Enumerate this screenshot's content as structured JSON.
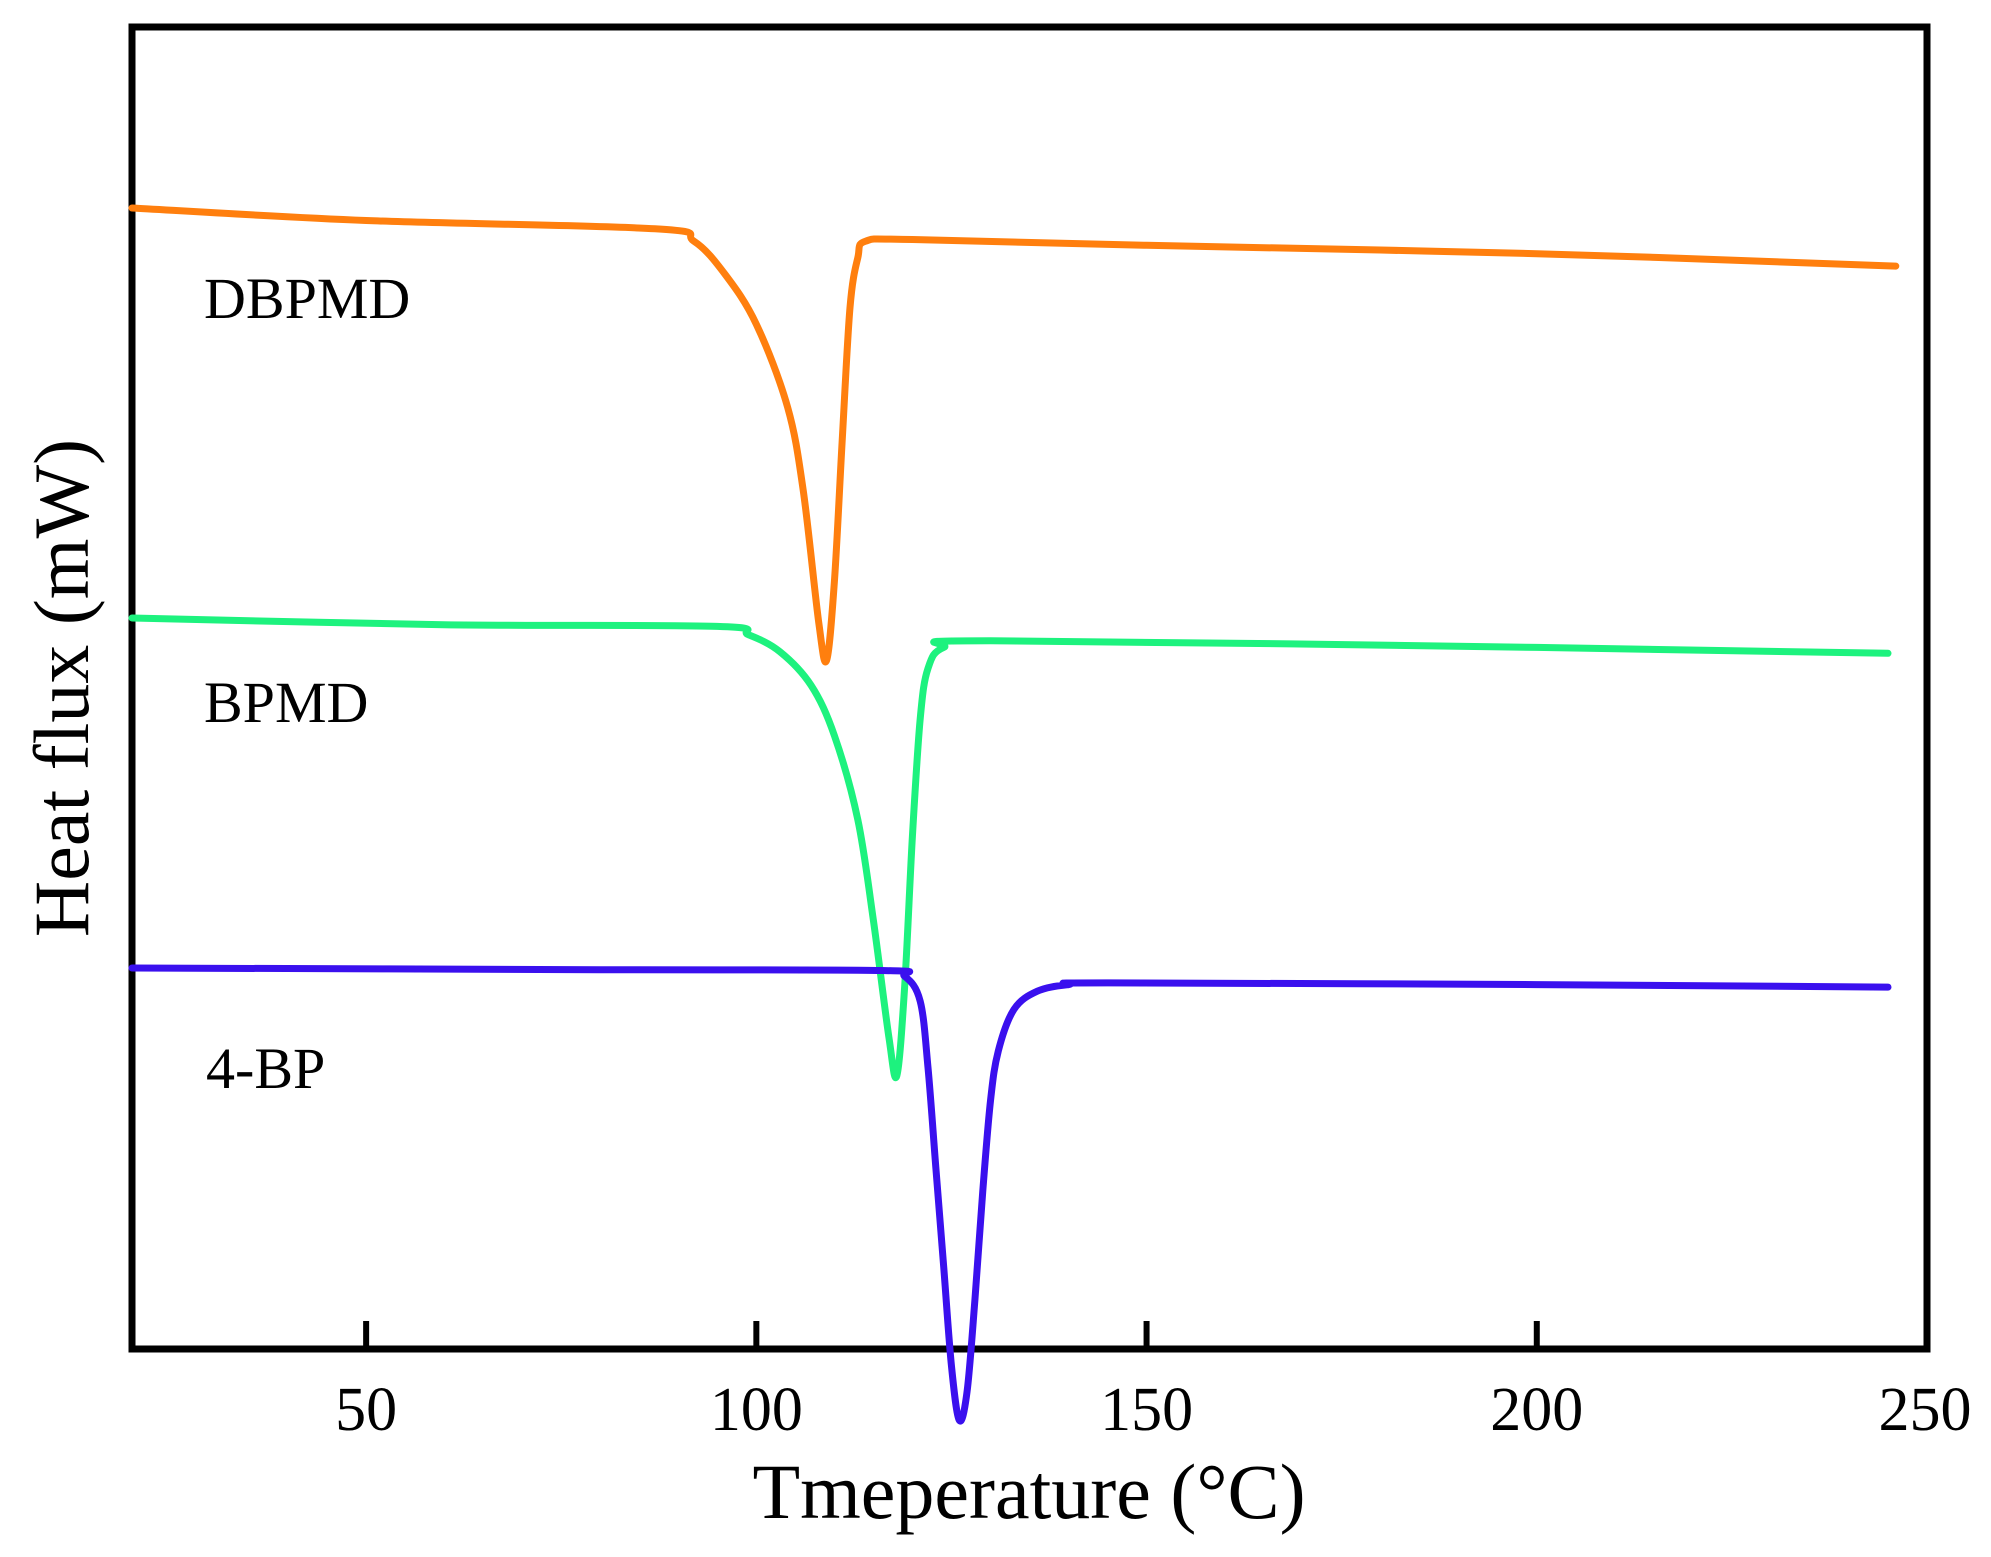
{
  "chart_data": {
    "type": "line",
    "title": "",
    "xlabel": "Tmeperature (°C)",
    "ylabel": "Heat flux (mW)",
    "xlim": [
      20,
      250
    ],
    "x_ticks": [
      50,
      100,
      150,
      200,
      250
    ],
    "y_ticks": [],
    "grid": false,
    "legend": "inline labels beside each curve",
    "y_units": "arbitrary (curves vertically offset, no y tick labels)",
    "series": [
      {
        "name": "DBPMD",
        "color": "#FF7F0E",
        "points": [
          [
            20,
            10.0
          ],
          [
            50,
            9.85
          ],
          [
            87,
            9.75
          ],
          [
            92,
            9.6
          ],
          [
            96,
            9.2
          ],
          [
            100,
            8.6
          ],
          [
            104,
            7.6
          ],
          [
            106,
            6.6
          ],
          [
            108,
            5.0
          ],
          [
            109,
            4.55
          ],
          [
            110,
            5.5
          ],
          [
            111,
            7.2
          ],
          [
            112,
            8.8
          ],
          [
            113,
            9.4
          ],
          [
            114,
            9.6
          ],
          [
            120,
            9.62
          ],
          [
            150,
            9.55
          ],
          [
            200,
            9.45
          ],
          [
            246,
            9.3
          ]
        ]
      },
      {
        "name": "BPMD",
        "color": "#1DF27E",
        "points": [
          [
            20,
            10.0
          ],
          [
            60,
            9.92
          ],
          [
            95,
            9.9
          ],
          [
            99,
            9.8
          ],
          [
            103,
            9.6
          ],
          [
            107,
            9.2
          ],
          [
            110,
            8.6
          ],
          [
            113,
            7.6
          ],
          [
            115,
            6.4
          ],
          [
            117,
            5.0
          ],
          [
            118,
            4.55
          ],
          [
            119,
            5.6
          ],
          [
            120,
            7.4
          ],
          [
            121,
            8.8
          ],
          [
            122,
            9.4
          ],
          [
            124,
            9.65
          ],
          [
            130,
            9.73
          ],
          [
            200,
            9.65
          ],
          [
            245,
            9.58
          ]
        ]
      },
      {
        "name": "4-BP",
        "color": "#3A10EE",
        "points": [
          [
            20,
            10.0
          ],
          [
            80,
            9.98
          ],
          [
            116,
            9.97
          ],
          [
            119,
            9.9
          ],
          [
            121,
            9.6
          ],
          [
            122,
            8.8
          ],
          [
            123,
            7.6
          ],
          [
            124,
            6.4
          ],
          [
            125,
            5.2
          ],
          [
            126,
            4.55
          ],
          [
            127,
            4.9
          ],
          [
            128,
            6.0
          ],
          [
            129,
            7.3
          ],
          [
            130,
            8.4
          ],
          [
            131,
            9.0
          ],
          [
            133,
            9.5
          ],
          [
            136,
            9.72
          ],
          [
            140,
            9.8
          ],
          [
            145,
            9.82
          ],
          [
            200,
            9.8
          ],
          [
            245,
            9.77
          ]
        ]
      }
    ]
  }
}
